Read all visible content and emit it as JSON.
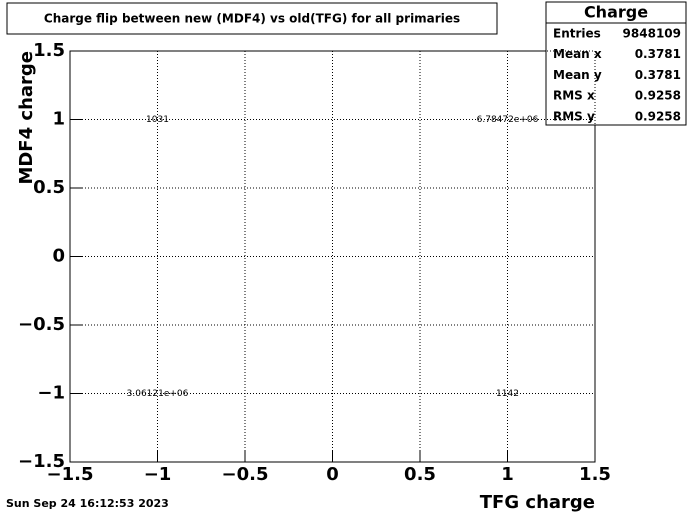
{
  "chart_data": {
    "type": "histogram2d",
    "title": "Charge flip between new (MDF4) vs old(TFG) for all primaries",
    "x_label": "TFG charge",
    "y_label": "MDF4 charge",
    "x": [
      -1,
      1,
      -1,
      1
    ],
    "y": [
      1,
      1,
      -1,
      -1
    ],
    "values": [
      1031,
      6784720,
      3061210,
      1142
    ],
    "value_labels": [
      "1031",
      "6.78472e+06",
      "3.06121e+06",
      "1142"
    ],
    "xlim": [
      -1.5,
      1.5
    ],
    "ylim": [
      -1.5,
      1.5
    ],
    "xticks": [
      {
        "value": -1.5,
        "label": "−1.5"
      },
      {
        "value": -1,
        "label": "−1"
      },
      {
        "value": -0.5,
        "label": "−0.5"
      },
      0,
      0.5,
      1,
      1.5
    ],
    "yticks": [
      {
        "value": -1.5,
        "label": "−1.5"
      },
      {
        "value": -1,
        "label": "−1"
      },
      {
        "value": -0.5,
        "label": "−0.5"
      },
      0,
      0.5,
      1,
      1.5
    ],
    "grid": true,
    "stats": {
      "title": "Charge",
      "rows": [
        {
          "label": "Entries",
          "value": 9848109
        },
        {
          "label": "Mean x",
          "value": 0.3781
        },
        {
          "label": "Mean y",
          "value": 0.3781
        },
        {
          "label": "RMS x",
          "value": 0.9258
        },
        {
          "label": "RMS y",
          "value": 0.9258
        }
      ]
    },
    "timestamp": "Sun Sep 24 16:12:53 2023"
  }
}
